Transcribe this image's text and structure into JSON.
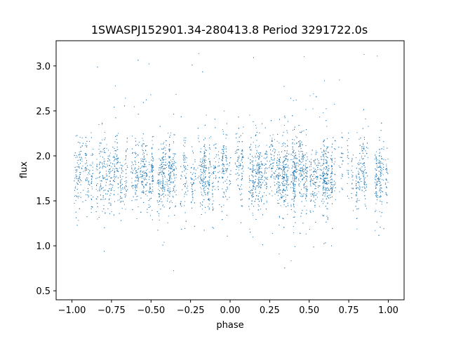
{
  "chart_data": {
    "type": "scatter",
    "title": "1SWASPJ152901.34-280413.8 Period 3291722.0s",
    "xlabel": "phase",
    "ylabel": "flux",
    "xlim": [
      -1.1,
      1.1
    ],
    "ylim": [
      0.4,
      3.28
    ],
    "x_ticks": [
      -1.0,
      -0.75,
      -0.5,
      -0.25,
      0.0,
      0.25,
      0.5,
      0.75,
      1.0
    ],
    "x_tick_labels": [
      "−1.00",
      "−0.75",
      "−0.50",
      "−0.25",
      "0.00",
      "0.25",
      "0.50",
      "0.75",
      "1.00"
    ],
    "y_ticks": [
      0.5,
      1.0,
      1.5,
      2.0,
      2.5,
      3.0
    ],
    "y_tick_labels": [
      "0.5",
      "1.0",
      "1.5",
      "2.0",
      "2.5",
      "3.0"
    ],
    "grid": false,
    "legend": "none",
    "marker_color": "#1f77b4",
    "series": [
      {
        "description_free": true,
        "x_range": [
          -1.0,
          1.0
        ],
        "y_center": 1.8,
        "y_core_range": [
          1.4,
          2.2
        ],
        "y_extent": [
          0.5,
          3.15
        ]
      }
    ]
  }
}
